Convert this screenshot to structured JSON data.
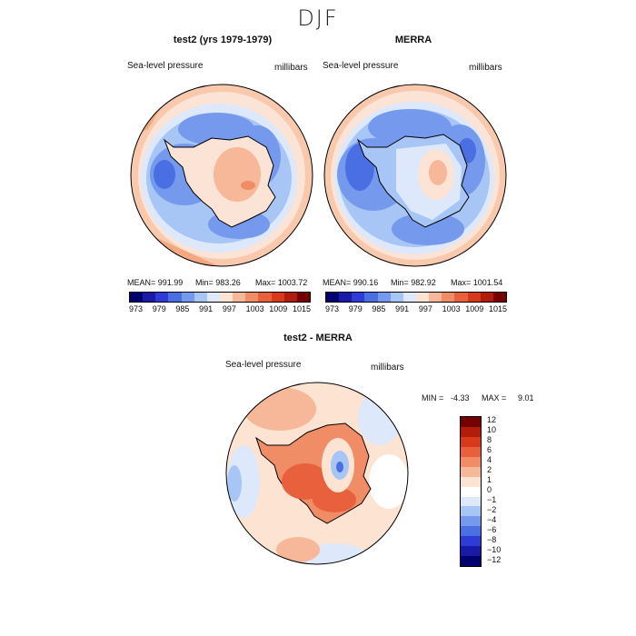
{
  "figure": {
    "season": "DJF",
    "variable_label": "Sea-level pressure",
    "units_label": "millibars"
  },
  "panels": {
    "left": {
      "title": "test2 (yrs 1979-1979)",
      "mean": "991.99",
      "min": "983.26",
      "max": "1003.72",
      "mean_text": "MEAN= 991.99",
      "min_text": "Min= 983.26",
      "max_text": "Max= 1003.72"
    },
    "right": {
      "title": "MERRA",
      "mean": "990.16",
      "min": "982.92",
      "max": "1001.54",
      "mean_text": "MEAN= 990.16",
      "min_text": "Min= 982.92",
      "max_text": "Max= 1001.54"
    },
    "diff": {
      "title": "test2 - MERRA",
      "min_label": "MIN =",
      "min_value": "-4.33",
      "max_label": "MAX =",
      "max_value": "9.01"
    }
  },
  "colorbar_abs": {
    "colors": [
      "#00006e",
      "#1a1aa8",
      "#2e3bd6",
      "#4a6fe3",
      "#7499ed",
      "#a7c5f5",
      "#dde9fb",
      "#fde4d2",
      "#f7b89a",
      "#f08c66",
      "#e8603c",
      "#d63a1a",
      "#b11d0a",
      "#760000"
    ],
    "tick_labels": [
      "973",
      "979",
      "985",
      "991",
      "997",
      "1003",
      "1009",
      "1015"
    ]
  },
  "colorbar_diff": {
    "colors": [
      "#760000",
      "#b11d0a",
      "#d63a1a",
      "#e8603c",
      "#f08c66",
      "#f7b89a",
      "#fde4d2",
      "#ffffff",
      "#dde9fb",
      "#a7c5f5",
      "#7499ed",
      "#4a6fe3",
      "#2e3bd6",
      "#1a1aa8",
      "#00006e"
    ],
    "tick_labels": [
      "12",
      "10",
      "8",
      "6",
      "4",
      "2",
      "1",
      "0",
      "−1",
      "−2",
      "−4",
      "−6",
      "−8",
      "−10",
      "−12"
    ]
  }
}
